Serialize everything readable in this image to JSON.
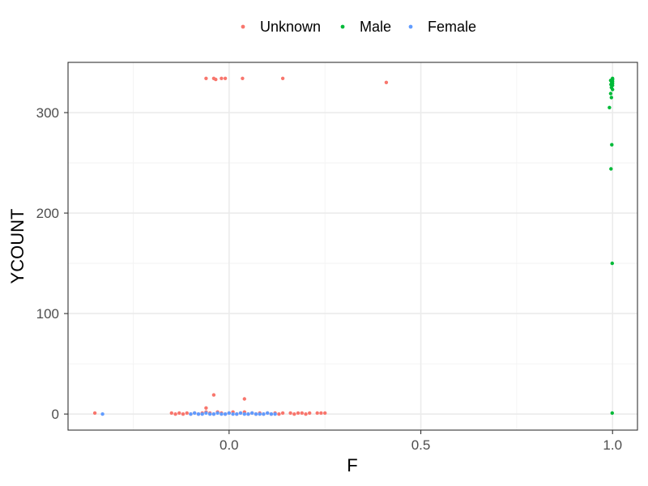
{
  "chart_data": {
    "type": "scatter",
    "xlabel": "F",
    "ylabel": "YCOUNT",
    "xlim": [
      -0.42,
      1.065
    ],
    "ylim": [
      -16,
      350
    ],
    "x_ticks": [
      0.0,
      0.5,
      1.0
    ],
    "x_tick_labels": [
      "0.0",
      "0.5",
      "1.0"
    ],
    "y_ticks": [
      0,
      100,
      200,
      300
    ],
    "y_tick_labels": [
      "0",
      "100",
      "200",
      "300"
    ],
    "x_minor_ticks": [
      -0.25,
      0.25,
      0.75
    ],
    "y_minor_ticks": [
      50,
      150,
      250
    ],
    "grid": true,
    "legend_position": "top",
    "series": [
      {
        "name": "Unknown",
        "color": "#F8766D",
        "points": [
          [
            -0.35,
            1
          ],
          [
            -0.15,
            1
          ],
          [
            -0.14,
            0
          ],
          [
            -0.13,
            1
          ],
          [
            -0.12,
            0
          ],
          [
            -0.11,
            1
          ],
          [
            -0.1,
            0
          ],
          [
            -0.09,
            1
          ],
          [
            -0.08,
            0
          ],
          [
            -0.07,
            1
          ],
          [
            -0.06,
            2
          ],
          [
            -0.06,
            6
          ],
          [
            -0.05,
            1
          ],
          [
            -0.04,
            0
          ],
          [
            -0.04,
            19
          ],
          [
            -0.03,
            2
          ],
          [
            -0.02,
            1
          ],
          [
            -0.01,
            0
          ],
          [
            0.0,
            1
          ],
          [
            0.01,
            2
          ],
          [
            0.02,
            0
          ],
          [
            0.03,
            1
          ],
          [
            0.04,
            2
          ],
          [
            0.04,
            15
          ],
          [
            0.05,
            0
          ],
          [
            0.06,
            1
          ],
          [
            0.07,
            0
          ],
          [
            0.08,
            1
          ],
          [
            0.09,
            0
          ],
          [
            0.1,
            1
          ],
          [
            0.11,
            0
          ],
          [
            0.12,
            1
          ],
          [
            0.13,
            0
          ],
          [
            0.14,
            1
          ],
          [
            0.16,
            1
          ],
          [
            0.17,
            0
          ],
          [
            0.18,
            1
          ],
          [
            0.19,
            1
          ],
          [
            0.2,
            0
          ],
          [
            0.21,
            1
          ],
          [
            0.23,
            1
          ],
          [
            0.24,
            1
          ],
          [
            0.25,
            1
          ],
          [
            -0.06,
            334
          ],
          [
            -0.04,
            334
          ],
          [
            -0.035,
            333
          ],
          [
            -0.02,
            334
          ],
          [
            -0.01,
            334
          ],
          [
            0.035,
            334
          ],
          [
            0.14,
            334
          ],
          [
            0.41,
            330
          ]
        ]
      },
      {
        "name": "Male",
        "color": "#00BA38",
        "points": [
          [
            1.0,
            334
          ],
          [
            1.0,
            333
          ],
          [
            0.995,
            332
          ],
          [
            1.0,
            331
          ],
          [
            0.998,
            330
          ],
          [
            1.0,
            329
          ],
          [
            0.996,
            328
          ],
          [
            1.0,
            327
          ],
          [
            0.997,
            325
          ],
          [
            1.0,
            323
          ],
          [
            0.995,
            319
          ],
          [
            0.997,
            315
          ],
          [
            0.992,
            305
          ],
          [
            0.998,
            268
          ],
          [
            0.996,
            244
          ],
          [
            0.999,
            150
          ],
          [
            0.999,
            1
          ]
        ]
      },
      {
        "name": "Female",
        "color": "#619CFF",
        "points": [
          [
            -0.33,
            0
          ],
          [
            -0.1,
            0
          ],
          [
            -0.09,
            1
          ],
          [
            -0.08,
            0
          ],
          [
            -0.07,
            0
          ],
          [
            -0.06,
            1
          ],
          [
            -0.05,
            0
          ],
          [
            -0.04,
            0
          ],
          [
            -0.03,
            1
          ],
          [
            -0.02,
            0
          ],
          [
            -0.01,
            0
          ],
          [
            0.0,
            1
          ],
          [
            0.01,
            0
          ],
          [
            0.02,
            0
          ],
          [
            0.03,
            1
          ],
          [
            0.04,
            0
          ],
          [
            0.05,
            0
          ],
          [
            0.06,
            1
          ],
          [
            0.07,
            0
          ],
          [
            0.08,
            0
          ],
          [
            0.09,
            0
          ],
          [
            0.1,
            1
          ],
          [
            0.11,
            0
          ],
          [
            0.12,
            0
          ]
        ]
      }
    ]
  }
}
